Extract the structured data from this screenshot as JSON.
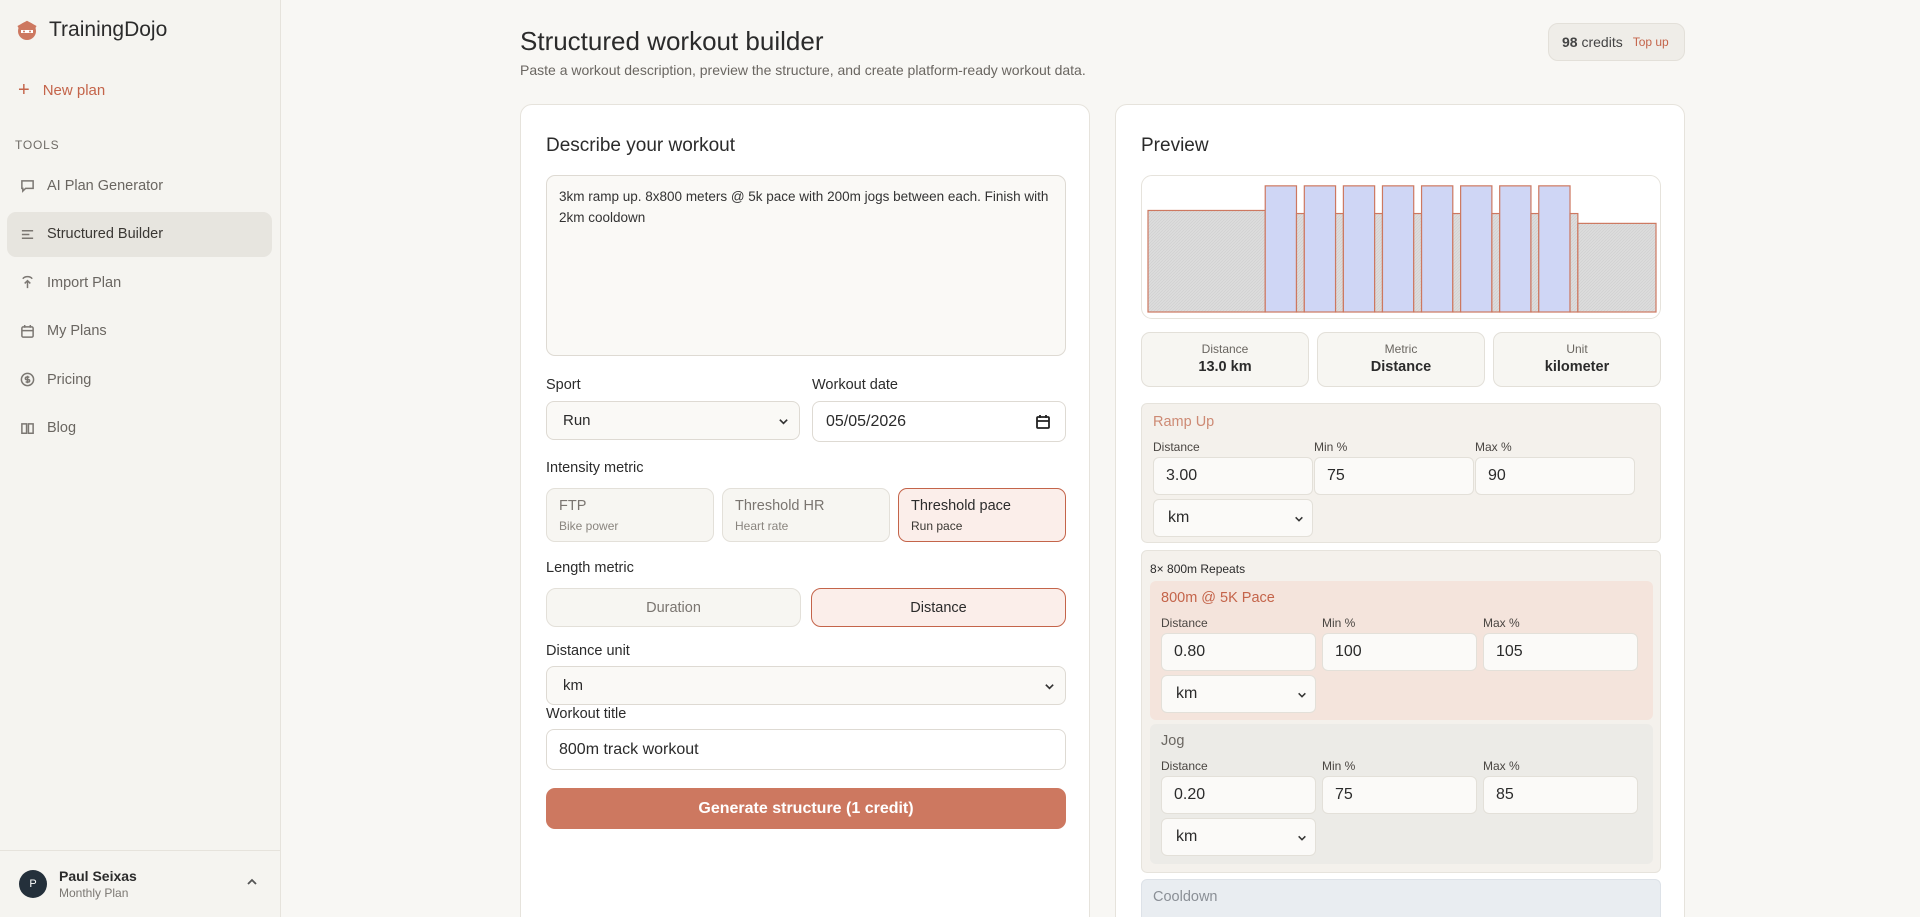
{
  "app": {
    "name": "TrainingDojo"
  },
  "sidebar": {
    "new_plan": "New plan",
    "section_label": "TOOLS",
    "items": [
      {
        "label": "AI Plan Generator",
        "icon": "chat-icon",
        "active": false
      },
      {
        "label": "Structured Builder",
        "icon": "list-icon",
        "active": true
      },
      {
        "label": "Import Plan",
        "icon": "import-icon",
        "active": false
      },
      {
        "label": "My Plans",
        "icon": "calendar-icon",
        "active": false
      },
      {
        "label": "Pricing",
        "icon": "dollar-icon",
        "active": false
      },
      {
        "label": "Blog",
        "icon": "book-icon",
        "active": false
      }
    ],
    "user": {
      "initial": "P",
      "name": "Paul Seixas",
      "plan": "Monthly Plan"
    }
  },
  "header": {
    "title": "Structured workout builder",
    "subtitle": "Paste a workout description, preview the structure, and create platform-ready workout data.",
    "credits_count": "98",
    "credits_label": "credits",
    "topup": "Top up"
  },
  "form": {
    "heading": "Describe your workout",
    "description": "3km ramp up. 8x800 meters @ 5k pace with 200m jogs between each. Finish with 2km cooldown",
    "sport_label": "Sport",
    "sport_value": "Run",
    "date_label": "Workout date",
    "date_value": "05/05/2026",
    "intensity_label": "Intensity metric",
    "intensity_options": [
      {
        "title": "FTP",
        "sub": "Bike power"
      },
      {
        "title": "Threshold HR",
        "sub": "Heart rate"
      },
      {
        "title": "Threshold pace",
        "sub": "Run pace"
      }
    ],
    "length_label": "Length metric",
    "length_options": [
      "Duration",
      "Distance"
    ],
    "unit_label": "Distance unit",
    "unit_value": "km",
    "title_label": "Workout title",
    "title_value": "800m track workout",
    "generate_button": "Generate structure (1 credit)"
  },
  "preview": {
    "heading": "Preview",
    "stats": [
      {
        "key": "Distance",
        "value": "13.0 km"
      },
      {
        "key": "Metric",
        "value": "Distance"
      },
      {
        "key": "Unit",
        "value": "kilometer"
      }
    ],
    "field_labels": {
      "distance": "Distance",
      "min": "Min %",
      "max": "Max %"
    },
    "ramp": {
      "name": "Ramp Up",
      "distance": "3.00",
      "min": "75",
      "max": "90",
      "unit": "km"
    },
    "repeat_label": "8× 800m Repeats",
    "work": {
      "name": "800m @ 5K Pace",
      "distance": "0.80",
      "min": "100",
      "max": "105",
      "unit": "km"
    },
    "jog": {
      "name": "Jog",
      "distance": "0.20",
      "min": "75",
      "max": "85",
      "unit": "km"
    },
    "cooldown": {
      "name": "Cooldown"
    }
  },
  "chart_data": {
    "type": "bar",
    "segments": [
      {
        "kind": "warmup",
        "distance": 3.0,
        "intensity": 82.5
      },
      {
        "kind": "work",
        "distance": 0.8,
        "intensity": 102.5
      },
      {
        "kind": "recovery",
        "distance": 0.2,
        "intensity": 80
      },
      {
        "kind": "work",
        "distance": 0.8,
        "intensity": 102.5
      },
      {
        "kind": "recovery",
        "distance": 0.2,
        "intensity": 80
      },
      {
        "kind": "work",
        "distance": 0.8,
        "intensity": 102.5
      },
      {
        "kind": "recovery",
        "distance": 0.2,
        "intensity": 80
      },
      {
        "kind": "work",
        "distance": 0.8,
        "intensity": 102.5
      },
      {
        "kind": "recovery",
        "distance": 0.2,
        "intensity": 80
      },
      {
        "kind": "work",
        "distance": 0.8,
        "intensity": 102.5
      },
      {
        "kind": "recovery",
        "distance": 0.2,
        "intensity": 80
      },
      {
        "kind": "work",
        "distance": 0.8,
        "intensity": 102.5
      },
      {
        "kind": "recovery",
        "distance": 0.2,
        "intensity": 80
      },
      {
        "kind": "work",
        "distance": 0.8,
        "intensity": 102.5
      },
      {
        "kind": "recovery",
        "distance": 0.2,
        "intensity": 80
      },
      {
        "kind": "work",
        "distance": 0.8,
        "intensity": 102.5
      },
      {
        "kind": "recovery",
        "distance": 0.2,
        "intensity": 80
      },
      {
        "kind": "cooldown",
        "distance": 2.0,
        "intensity": 72
      }
    ],
    "colors": {
      "warmup": "#dcdcdc",
      "work": "#cfd6f5",
      "recovery": "#dcdcdc",
      "cooldown": "#dcdcdc",
      "outline": "#cd7860"
    }
  },
  "colors": {
    "accent": "#cd7860",
    "accent_text": "#c4644a"
  }
}
